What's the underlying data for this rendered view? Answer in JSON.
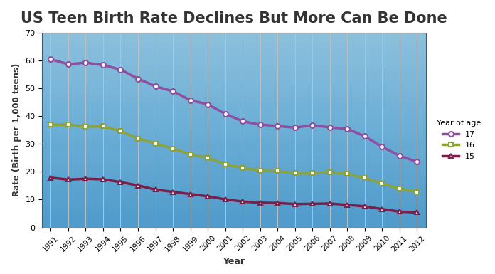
{
  "chart_data": {
    "type": "line",
    "title": "US Teen Birth Rate Declines But More Can Be Done",
    "x_label": "Year",
    "y_label": "Rate (Birth per 1,000 teens)",
    "legend_title": "Year of age",
    "x": [
      1991,
      1992,
      1993,
      1994,
      1995,
      1996,
      1997,
      1998,
      1999,
      2000,
      2001,
      2002,
      2003,
      2004,
      2005,
      2006,
      2007,
      2008,
      2009,
      2010,
      2011,
      2012
    ],
    "series": [
      {
        "name": "17",
        "color": "#8e4fa0",
        "marker": "circle",
        "values": [
          60.5,
          58.7,
          59.3,
          58.4,
          56.8,
          53.5,
          50.8,
          49.0,
          45.8,
          44.3,
          40.9,
          38.2,
          37.0,
          36.5,
          35.9,
          36.8,
          36.0,
          35.5,
          32.8,
          29.0,
          25.8,
          23.6
        ]
      },
      {
        "name": "16",
        "color": "#8ca23a",
        "marker": "square",
        "values": [
          36.9,
          37.0,
          36.2,
          36.4,
          34.7,
          32.0,
          30.2,
          28.4,
          26.3,
          25.1,
          22.7,
          21.5,
          20.4,
          20.3,
          19.5,
          19.6,
          19.9,
          19.3,
          17.7,
          15.8,
          13.9,
          12.8
        ]
      },
      {
        "name": "15",
        "color": "#7a1f4a",
        "marker": "triangle",
        "values": [
          17.9,
          17.2,
          17.5,
          17.3,
          16.3,
          15.1,
          13.6,
          12.8,
          12.0,
          11.2,
          10.1,
          9.3,
          8.9,
          8.8,
          8.4,
          8.5,
          8.6,
          8.1,
          7.6,
          6.6,
          5.7,
          5.4
        ]
      }
    ],
    "xlim": [
      1990.5,
      2012.5
    ],
    "xticks": [
      1991,
      1992,
      1993,
      1994,
      1995,
      1996,
      1997,
      1998,
      1999,
      2000,
      2001,
      2002,
      2003,
      2004,
      2005,
      2006,
      2007,
      2008,
      2009,
      2010,
      2011,
      2012
    ],
    "ylim": [
      0,
      70
    ],
    "yticks": [
      0,
      10,
      20,
      30,
      40,
      50,
      60,
      70
    ],
    "grid": true,
    "legend": "center left"
  }
}
